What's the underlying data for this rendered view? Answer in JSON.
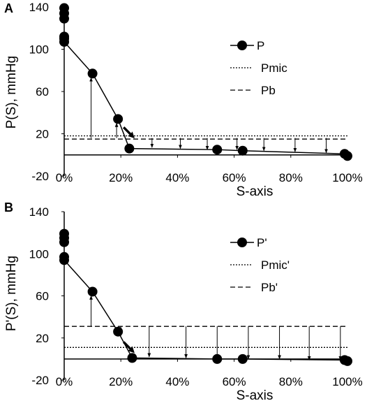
{
  "chart_data": [
    {
      "panel_label": "A",
      "type": "line",
      "xlabel": "S-axis",
      "ylabel": "P(S), mmHg",
      "xlim": [
        0,
        100
      ],
      "ylim": [
        -20,
        140
      ],
      "x_tick_labels": [
        "0%",
        "20%",
        "40%",
        "60%",
        "80%",
        "100%"
      ],
      "x_ticks": [
        0,
        20,
        40,
        60,
        80,
        100
      ],
      "y_tick_labels": [
        "-20",
        "20",
        "60",
        "100",
        "140"
      ],
      "y_ticks": [
        -20,
        20,
        60,
        100,
        140
      ],
      "x_unit": "%",
      "legend": [
        "P",
        "Pmic",
        "Pb"
      ],
      "legend_position": "right",
      "grid": false,
      "series": [
        {
          "name": "P",
          "style": "solid-markers",
          "x": [
            0,
            10,
            19,
            23,
            54,
            63,
            99,
            100
          ],
          "y": [
            107,
            77,
            34,
            6,
            5,
            4,
            1,
            -1
          ]
        },
        {
          "name": "Pmic",
          "style": "dotted",
          "x": [
            0,
            100
          ],
          "y": [
            18,
            18
          ]
        },
        {
          "name": "Pb",
          "style": "dashed",
          "x": [
            0,
            100
          ],
          "y": [
            15,
            15
          ]
        }
      ],
      "extra_points": [
        {
          "x": 0,
          "y": 110
        },
        {
          "x": 0,
          "y": 112
        },
        {
          "x": 0,
          "y": 129
        },
        {
          "x": 0,
          "y": 134
        },
        {
          "x": 0,
          "y": 139
        }
      ],
      "up_arrows": [
        {
          "x": 9.5,
          "y_from": 16,
          "y_to": 73
        },
        {
          "x": 18.5,
          "y_from": 16,
          "y_to": 30
        }
      ],
      "down_arrows": [
        {
          "x": 31,
          "y_from": 16,
          "y_to": 7
        },
        {
          "x": 41,
          "y_from": 16,
          "y_to": 6
        },
        {
          "x": 50.5,
          "y_from": 16,
          "y_to": 5
        },
        {
          "x": 61,
          "y_from": 16,
          "y_to": 5
        },
        {
          "x": 70.5,
          "y_from": 16,
          "y_to": 4
        },
        {
          "x": 81.5,
          "y_from": 16,
          "y_to": 3
        },
        {
          "x": 92.5,
          "y_from": 16,
          "y_to": 2
        }
      ],
      "pointer": {
        "x": 23,
        "y": 24
      }
    },
    {
      "panel_label": "B",
      "type": "line",
      "xlabel": "S-axis",
      "ylabel": "P'(S), mmHg",
      "xlim": [
        0,
        100
      ],
      "ylim": [
        -20,
        140
      ],
      "x_tick_labels": [
        "0%",
        "20%",
        "40%",
        "60%",
        "80%",
        "100%"
      ],
      "x_ticks": [
        0,
        20,
        40,
        60,
        80,
        100
      ],
      "y_tick_labels": [
        "-20",
        "20",
        "60",
        "100",
        "140"
      ],
      "y_ticks": [
        -20,
        20,
        60,
        100,
        140
      ],
      "x_unit": "%",
      "legend": [
        "P'",
        "Pmic'",
        "Pb'"
      ],
      "legend_position": "right",
      "grid": false,
      "series": [
        {
          "name": "P'",
          "style": "solid-markers",
          "x": [
            0,
            10,
            19,
            24,
            54,
            63,
            99,
            100
          ],
          "y": [
            94,
            64,
            26,
            1,
            0,
            0,
            -1,
            -2
          ]
        },
        {
          "name": "Pmic'",
          "style": "dotted",
          "x": [
            0,
            100
          ],
          "y": [
            11,
            11
          ]
        },
        {
          "name": "Pb'",
          "style": "dashed",
          "x": [
            0,
            100
          ],
          "y": [
            31,
            31
          ]
        }
      ],
      "extra_points": [
        {
          "x": 0,
          "y": 97
        },
        {
          "x": 0,
          "y": 111
        },
        {
          "x": 0,
          "y": 115
        },
        {
          "x": 0,
          "y": 119
        }
      ],
      "up_arrows": [
        {
          "x": 9.5,
          "y_from": 31,
          "y_to": 60
        }
      ],
      "down_arrows": [
        {
          "x": 20,
          "y_from": 31,
          "y_to": 22
        },
        {
          "x": 30,
          "y_from": 31,
          "y_to": 2
        },
        {
          "x": 43,
          "y_from": 31,
          "y_to": 1
        },
        {
          "x": 54,
          "y_from": 31,
          "y_to": 1
        },
        {
          "x": 65,
          "y_from": 31,
          "y_to": 0
        },
        {
          "x": 76,
          "y_from": 31,
          "y_to": 0
        },
        {
          "x": 86.5,
          "y_from": 31,
          "y_to": -1
        },
        {
          "x": 97.5,
          "y_from": 31,
          "y_to": -1
        }
      ],
      "pointer": {
        "x": 23,
        "y": 14
      }
    }
  ]
}
